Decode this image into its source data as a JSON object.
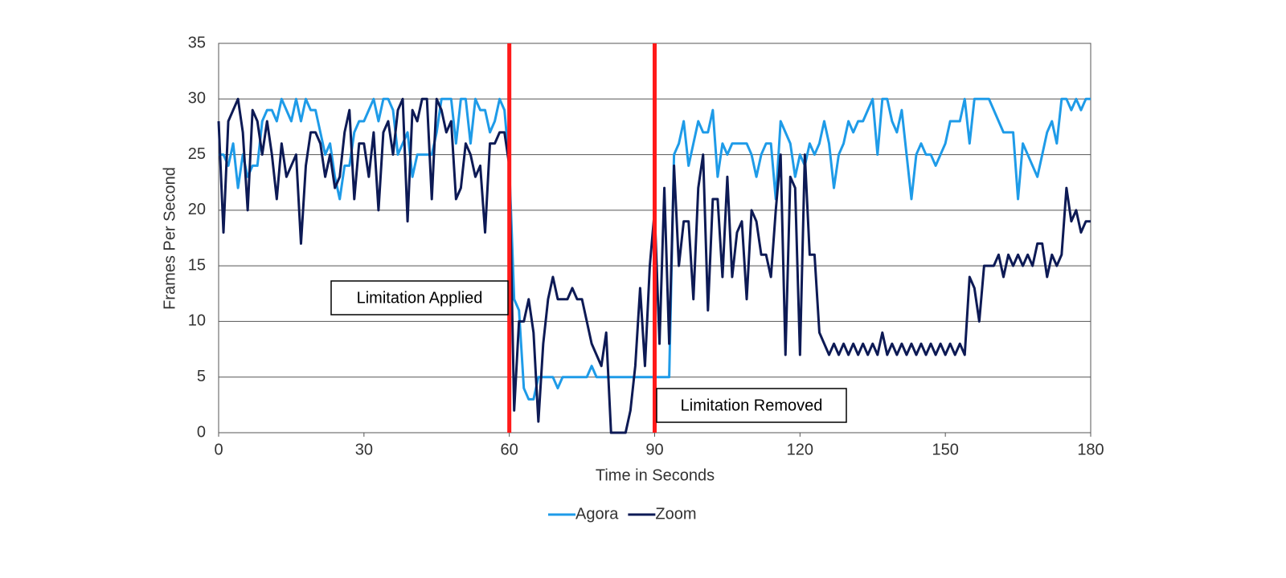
{
  "chart_data": {
    "type": "line",
    "x_label": "Time in Seconds",
    "y_label": "Frames Per Second",
    "xlim": [
      0,
      180
    ],
    "xticks": [
      0,
      30,
      60,
      90,
      120,
      150,
      180
    ],
    "ylim": [
      0,
      35
    ],
    "yticks": [
      0,
      5,
      10,
      15,
      20,
      25,
      30,
      35
    ],
    "grid": true,
    "legend": "bottom",
    "vlines": [
      {
        "value": 60,
        "color": "#ff1a1a"
      },
      {
        "value": 90,
        "color": "#ff1a1a"
      }
    ],
    "annotations": [
      "Limitation Applied",
      "Limitation Removed"
    ],
    "x": [
      0,
      1,
      2,
      3,
      4,
      5,
      6,
      7,
      8,
      9,
      10,
      11,
      12,
      13,
      14,
      15,
      16,
      17,
      18,
      19,
      20,
      21,
      22,
      23,
      24,
      25,
      26,
      27,
      28,
      29,
      30,
      31,
      32,
      33,
      34,
      35,
      36,
      37,
      38,
      39,
      40,
      41,
      42,
      43,
      44,
      45,
      46,
      47,
      48,
      49,
      50,
      51,
      52,
      53,
      54,
      55,
      56,
      57,
      58,
      59,
      60,
      61,
      62,
      63,
      64,
      65,
      66,
      67,
      68,
      69,
      70,
      71,
      72,
      73,
      74,
      75,
      76,
      77,
      78,
      79,
      80,
      81,
      82,
      83,
      84,
      85,
      86,
      87,
      88,
      89,
      90,
      91,
      92,
      93,
      94,
      95,
      96,
      97,
      98,
      99,
      100,
      101,
      102,
      103,
      104,
      105,
      106,
      107,
      108,
      109,
      110,
      111,
      112,
      113,
      114,
      115,
      116,
      117,
      118,
      119,
      120,
      121,
      122,
      123,
      124,
      125,
      126,
      127,
      128,
      129,
      130,
      131,
      132,
      133,
      134,
      135,
      136,
      137,
      138,
      139,
      140,
      141,
      142,
      143,
      144,
      145,
      146,
      147,
      148,
      149,
      150,
      151,
      152,
      153,
      154,
      155,
      156,
      157,
      158,
      159,
      160,
      161,
      162,
      163,
      164,
      165,
      166,
      167,
      168,
      169,
      170,
      171,
      172,
      173,
      174,
      175,
      176,
      177,
      178,
      179,
      180
    ],
    "series": [
      {
        "name": "Agora",
        "color": "#1e9be8",
        "values": [
          25,
          25,
          24,
          26,
          22,
          25,
          23,
          24,
          24,
          28,
          29,
          29,
          28,
          30,
          29,
          28,
          30,
          28,
          30,
          29,
          29,
          27,
          25,
          26,
          23,
          21,
          24,
          24,
          27,
          28,
          28,
          29,
          30,
          28,
          30,
          30,
          29,
          25,
          26,
          27,
          23,
          25,
          25,
          25,
          25,
          27,
          30,
          30,
          30,
          26,
          30,
          30,
          26,
          30,
          29,
          29,
          27,
          28,
          30,
          29,
          24,
          12,
          11,
          4,
          3,
          3,
          5,
          5,
          5,
          5,
          4,
          5,
          5,
          5,
          5,
          5,
          5,
          6,
          5,
          5,
          5,
          5,
          5,
          5,
          5,
          5,
          5,
          5,
          5,
          5,
          5,
          5,
          5,
          5,
          25,
          26,
          28,
          24,
          26,
          28,
          27,
          27,
          29,
          23,
          26,
          25,
          26,
          26,
          26,
          26,
          25,
          23,
          25,
          26,
          26,
          21,
          28,
          27,
          26,
          23,
          25,
          24,
          26,
          25,
          26,
          28,
          26,
          22,
          25,
          26,
          28,
          27,
          28,
          28,
          29,
          30,
          25,
          30,
          30,
          28,
          27,
          29,
          25,
          21,
          25,
          26,
          25,
          25,
          24,
          25,
          26,
          28,
          28,
          28,
          30,
          26,
          30,
          30,
          30,
          30,
          29,
          28,
          27,
          27,
          27,
          21,
          26,
          25,
          24,
          23,
          25,
          27,
          28,
          26,
          30,
          30,
          29,
          30,
          29,
          30,
          30
        ]
      },
      {
        "name": "Zoom",
        "color": "#0d1a55",
        "values": [
          28,
          18,
          28,
          29,
          30,
          27,
          20,
          29,
          28,
          25,
          28,
          25,
          21,
          26,
          23,
          24,
          25,
          17,
          24,
          27,
          27,
          26,
          23,
          25,
          22,
          23,
          27,
          29,
          21,
          26,
          26,
          23,
          27,
          20,
          27,
          28,
          25,
          29,
          30,
          19,
          29,
          28,
          30,
          30,
          21,
          30,
          29,
          27,
          28,
          21,
          22,
          26,
          25,
          23,
          24,
          18,
          26,
          26,
          27,
          27,
          24,
          2,
          10,
          10,
          12,
          9,
          1,
          8,
          12,
          14,
          12,
          12,
          12,
          13,
          12,
          12,
          10,
          8,
          7,
          6,
          9,
          0,
          0,
          0,
          0,
          2,
          6,
          13,
          6,
          15,
          20,
          8,
          22,
          8,
          24,
          15,
          19,
          19,
          12,
          22,
          25,
          11,
          21,
          21,
          14,
          23,
          14,
          18,
          19,
          12,
          20,
          19,
          16,
          16,
          14,
          20,
          25,
          7,
          23,
          22,
          7,
          25,
          16,
          16,
          9,
          8,
          7,
          8,
          7,
          8,
          7,
          8,
          7,
          8,
          7,
          8,
          7,
          9,
          7,
          8,
          7,
          8,
          7,
          8,
          7,
          8,
          7,
          8,
          7,
          8,
          7,
          8,
          7,
          8,
          7,
          14,
          13,
          10,
          15,
          15,
          15,
          16,
          14,
          16,
          15,
          16,
          15,
          16,
          15,
          17,
          17,
          14,
          16,
          15,
          16,
          22,
          19,
          20,
          18,
          19,
          19
        ]
      }
    ]
  }
}
